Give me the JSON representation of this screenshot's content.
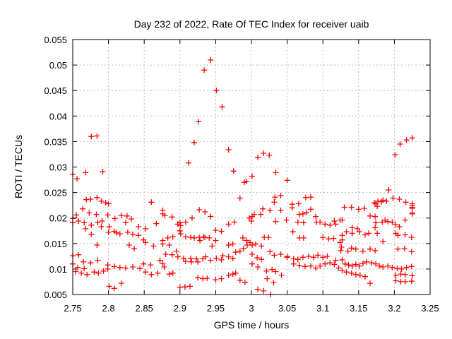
{
  "window": {
    "title": "Day 232 of 2022, Rate Of TEC Index for receiver uaib"
  },
  "colors": {
    "marker": "#ff0000",
    "grid": "#bebebe",
    "axis": "#000000",
    "background": "#ffffff",
    "text": "#000000"
  },
  "chart_data": {
    "type": "scatter",
    "title": "Day 232 of 2022, Rate Of TEC Index for receiver uaib",
    "xlabel": "GPS time / hours",
    "ylabel": "ROTI / TECUs",
    "xlim": [
      2.75,
      3.25
    ],
    "ylim": [
      0.005,
      0.055
    ],
    "xticks": [
      2.75,
      2.8,
      2.85,
      2.9,
      2.95,
      3,
      3.05,
      3.1,
      3.15,
      3.2,
      3.25
    ],
    "yticks": [
      0.005,
      0.01,
      0.015,
      0.02,
      0.025,
      0.03,
      0.035,
      0.04,
      0.045,
      0.05,
      0.055
    ],
    "grid": true,
    "legend": false,
    "marker": "plus",
    "marker_color": "#ff0000",
    "points": [
      [
        2.943,
        0.051
      ],
      [
        2.934,
        0.049
      ],
      [
        2.951,
        0.045
      ],
      [
        2.959,
        0.0418
      ],
      [
        2.926,
        0.0389
      ],
      [
        2.776,
        0.036
      ],
      [
        2.784,
        0.0361
      ],
      [
        2.92,
        0.0348
      ],
      [
        2.968,
        0.0334
      ],
      [
        2.912,
        0.0308
      ],
      [
        3.009,
        0.0319
      ],
      [
        3.017,
        0.0327
      ],
      [
        3.025,
        0.0323
      ],
      [
        2.975,
        0.0292
      ],
      [
        3.034,
        0.0289
      ],
      [
        2.993,
        0.0272
      ],
      [
        3.001,
        0.0282
      ],
      [
        2.75,
        0.0286
      ],
      [
        2.756,
        0.0277
      ],
      [
        2.768,
        0.0289
      ],
      [
        2.792,
        0.0291
      ],
      [
        3.201,
        0.0324
      ],
      [
        3.208,
        0.0345
      ],
      [
        3.217,
        0.0353
      ],
      [
        3.225,
        0.0357
      ],
      [
        3.05,
        0.0274
      ],
      [
        3.192,
        0.0255
      ],
      [
        2.769,
        0.0236
      ],
      [
        2.775,
        0.0237
      ],
      [
        2.784,
        0.024
      ],
      [
        2.79,
        0.0233
      ],
      [
        2.796,
        0.023
      ],
      [
        2.8,
        0.0228
      ],
      [
        2.86,
        0.0231
      ],
      [
        2.984,
        0.0239
      ],
      [
        2.99,
        0.027
      ],
      [
        3.033,
        0.0241
      ],
      [
        3.041,
        0.0244
      ],
      [
        3.076,
        0.024
      ],
      [
        3.083,
        0.0241
      ],
      [
        3.032,
        0.0231
      ],
      [
        3.057,
        0.0227
      ],
      [
        3.066,
        0.0228
      ],
      [
        3.174,
        0.0228
      ],
      [
        3.182,
        0.0232
      ],
      [
        3.189,
        0.0233
      ],
      [
        3.198,
        0.0239
      ],
      [
        3.207,
        0.0237
      ],
      [
        3.216,
        0.0231
      ],
      [
        3.225,
        0.0228
      ],
      [
        3.177,
        0.0233
      ],
      [
        3.184,
        0.0235
      ],
      [
        3.172,
        0.023
      ],
      [
        3.225,
        0.0225
      ],
      [
        3.225,
        0.0219
      ],
      [
        3.225,
        0.021
      ],
      [
        2.876,
        0.0215
      ],
      [
        2.764,
        0.0218
      ],
      [
        2.773,
        0.021
      ],
      [
        2.783,
        0.0207
      ],
      [
        2.755,
        0.0206
      ],
      [
        2.75,
        0.0199
      ],
      [
        2.758,
        0.0194
      ],
      [
        2.766,
        0.0191
      ],
      [
        2.75,
        0.0191
      ],
      [
        2.768,
        0.0179
      ],
      [
        2.776,
        0.0186
      ],
      [
        2.785,
        0.0191
      ],
      [
        2.791,
        0.0194
      ],
      [
        2.79,
        0.0183
      ],
      [
        2.799,
        0.0206
      ],
      [
        2.801,
        0.0183
      ],
      [
        2.776,
        0.0168
      ],
      [
        2.8,
        0.0172
      ],
      [
        2.809,
        0.0199
      ],
      [
        2.808,
        0.0174
      ],
      [
        2.811,
        0.0171
      ],
      [
        2.816,
        0.0169
      ],
      [
        2.818,
        0.0205
      ],
      [
        2.826,
        0.0204
      ],
      [
        2.824,
        0.0191
      ],
      [
        2.827,
        0.0172
      ],
      [
        2.832,
        0.0198
      ],
      [
        2.834,
        0.0168
      ],
      [
        2.842,
        0.0183
      ],
      [
        2.842,
        0.0166
      ],
      [
        2.849,
        0.0157
      ],
      [
        2.852,
        0.0179
      ],
      [
        2.852,
        0.0152
      ],
      [
        2.867,
        0.0189
      ],
      [
        2.863,
        0.0145
      ],
      [
        2.784,
        0.0147
      ],
      [
        2.758,
        0.0128
      ],
      [
        2.75,
        0.0126
      ],
      [
        2.765,
        0.0114
      ],
      [
        2.775,
        0.0112
      ],
      [
        2.785,
        0.0117
      ],
      [
        2.75,
        0.011
      ],
      [
        2.757,
        0.0103
      ],
      [
        2.766,
        0.0101
      ],
      [
        2.754,
        0.0095
      ],
      [
        2.762,
        0.0092
      ],
      [
        2.77,
        0.0089
      ],
      [
        2.78,
        0.0094
      ],
      [
        2.786,
        0.0092
      ],
      [
        2.793,
        0.0096
      ],
      [
        2.799,
        0.01
      ],
      [
        2.799,
        0.0108
      ],
      [
        2.808,
        0.0105
      ],
      [
        2.816,
        0.0103
      ],
      [
        2.824,
        0.0102
      ],
      [
        2.834,
        0.0104
      ],
      [
        2.844,
        0.0101
      ],
      [
        2.852,
        0.0094
      ],
      [
        2.86,
        0.0089
      ],
      [
        2.869,
        0.0092
      ],
      [
        2.801,
        0.0066
      ],
      [
        2.808,
        0.0062
      ],
      [
        2.818,
        0.0072
      ],
      [
        2.829,
        0.0147
      ],
      [
        2.836,
        0.014
      ],
      [
        2.849,
        0.011
      ],
      [
        2.859,
        0.0108
      ],
      [
        2.872,
        0.0117
      ],
      [
        2.927,
        0.0216
      ],
      [
        2.935,
        0.0212
      ],
      [
        2.943,
        0.0203
      ],
      [
        2.879,
        0.0205
      ],
      [
        2.889,
        0.0202
      ],
      [
        2.876,
        0.0208
      ],
      [
        2.897,
        0.0188
      ],
      [
        2.9,
        0.0191
      ],
      [
        2.901,
        0.0185
      ],
      [
        2.908,
        0.0192
      ],
      [
        2.917,
        0.02
      ],
      [
        2.968,
        0.0188
      ],
      [
        2.976,
        0.0192
      ],
      [
        2.9,
        0.0175
      ],
      [
        2.901,
        0.0169
      ],
      [
        2.908,
        0.0163
      ],
      [
        2.915,
        0.0162
      ],
      [
        2.92,
        0.0161
      ],
      [
        2.927,
        0.0162
      ],
      [
        2.928,
        0.0156
      ],
      [
        2.933,
        0.0163
      ],
      [
        2.935,
        0.0162
      ],
      [
        2.941,
        0.0161
      ],
      [
        2.95,
        0.0176
      ],
      [
        2.958,
        0.0174
      ],
      [
        2.95,
        0.0156
      ],
      [
        2.945,
        0.0145
      ],
      [
        2.89,
        0.0163
      ],
      [
        2.883,
        0.0161
      ],
      [
        2.876,
        0.0156
      ],
      [
        2.876,
        0.0149
      ],
      [
        2.885,
        0.0147
      ],
      [
        2.88,
        0.0129
      ],
      [
        2.889,
        0.0128
      ],
      [
        2.897,
        0.0124
      ],
      [
        2.905,
        0.0121
      ],
      [
        2.908,
        0.0115
      ],
      [
        2.915,
        0.0121
      ],
      [
        2.916,
        0.0114
      ],
      [
        2.923,
        0.012
      ],
      [
        2.925,
        0.0114
      ],
      [
        2.932,
        0.012
      ],
      [
        2.895,
        0.0135
      ],
      [
        2.936,
        0.0124
      ],
      [
        2.943,
        0.0117
      ],
      [
        2.951,
        0.0121
      ],
      [
        2.958,
        0.0118
      ],
      [
        2.96,
        0.0126
      ],
      [
        2.968,
        0.0124
      ],
      [
        2.974,
        0.0121
      ],
      [
        2.978,
        0.0133
      ],
      [
        2.984,
        0.0135
      ],
      [
        2.989,
        0.014
      ],
      [
        2.994,
        0.0147
      ],
      [
        2.998,
        0.0152
      ],
      [
        2.988,
        0.0161
      ],
      [
        2.993,
        0.0156
      ],
      [
        2.974,
        0.0149
      ],
      [
        2.968,
        0.0147
      ],
      [
        2.925,
        0.0083
      ],
      [
        2.932,
        0.0081
      ],
      [
        2.938,
        0.0082
      ],
      [
        2.95,
        0.0079
      ],
      [
        2.958,
        0.0081
      ],
      [
        2.968,
        0.0088
      ],
      [
        2.974,
        0.009
      ],
      [
        2.978,
        0.0092
      ],
      [
        2.984,
        0.0078
      ],
      [
        2.991,
        0.0074
      ],
      [
        2.9,
        0.0064
      ],
      [
        2.907,
        0.0065
      ],
      [
        2.914,
        0.0066
      ],
      [
        2.876,
        0.0111
      ],
      [
        2.878,
        0.0104
      ],
      [
        2.885,
        0.009
      ],
      [
        2.89,
        0.0092
      ],
      [
        2.997,
        0.02
      ],
      [
        3.0,
        0.0194
      ],
      [
        3.016,
        0.0218
      ],
      [
        3.026,
        0.0215
      ],
      [
        3.004,
        0.0207
      ],
      [
        3.013,
        0.0207
      ],
      [
        3.001,
        0.0203
      ],
      [
        3.034,
        0.0193
      ],
      [
        3.041,
        0.0215
      ],
      [
        3.057,
        0.022
      ],
      [
        3.067,
        0.0207
      ],
      [
        3.072,
        0.0208
      ],
      [
        3.077,
        0.0211
      ],
      [
        3.083,
        0.0217
      ],
      [
        3.049,
        0.0196
      ],
      [
        3.065,
        0.0192
      ],
      [
        3.073,
        0.0191
      ],
      [
        3.09,
        0.0203
      ],
      [
        3.091,
        0.0192
      ],
      [
        3.096,
        0.0192
      ],
      [
        3.103,
        0.0188
      ],
      [
        3.11,
        0.0186
      ],
      [
        3.116,
        0.0194
      ],
      [
        3.118,
        0.0188
      ],
      [
        3.124,
        0.0196
      ],
      [
        3.058,
        0.0173
      ],
      [
        3.067,
        0.0161
      ],
      [
        3.073,
        0.0161
      ],
      [
        3.1,
        0.0162
      ],
      [
        3.108,
        0.0159
      ],
      [
        3.115,
        0.016
      ],
      [
        3.018,
        0.0162
      ],
      [
        3.024,
        0.0162
      ],
      [
        3.006,
        0.0149
      ],
      [
        3.001,
        0.0147
      ],
      [
        3.014,
        0.0145
      ],
      [
        3.026,
        0.0134
      ],
      [
        3.032,
        0.0127
      ],
      [
        3.041,
        0.0129
      ],
      [
        3.05,
        0.0125
      ],
      [
        3.05,
        0.0123
      ],
      [
        3.059,
        0.012
      ],
      [
        3.065,
        0.0119
      ],
      [
        3.072,
        0.0123
      ],
      [
        3.08,
        0.0125
      ],
      [
        3.087,
        0.0123
      ],
      [
        3.093,
        0.0127
      ],
      [
        3.1,
        0.0123
      ],
      [
        3.106,
        0.0125
      ],
      [
        3.059,
        0.011
      ],
      [
        3.067,
        0.0107
      ],
      [
        3.075,
        0.0105
      ],
      [
        3.083,
        0.0106
      ],
      [
        3.09,
        0.0102
      ],
      [
        3.096,
        0.0106
      ],
      [
        3.103,
        0.011
      ],
      [
        3.11,
        0.0112
      ],
      [
        3.116,
        0.0109
      ],
      [
        3.001,
        0.0129
      ],
      [
        3.008,
        0.0122
      ],
      [
        3.014,
        0.0119
      ],
      [
        3.001,
        0.011
      ],
      [
        3.009,
        0.0104
      ],
      [
        3.021,
        0.0096
      ],
      [
        3.029,
        0.0099
      ],
      [
        3.034,
        0.0095
      ],
      [
        3.042,
        0.0088
      ],
      [
        3.022,
        0.0081
      ],
      [
        3.031,
        0.0073
      ],
      [
        3.009,
        0.006
      ],
      [
        3.017,
        0.0057
      ],
      [
        3.027,
        0.005
      ],
      [
        3.124,
        0.0152
      ],
      [
        3.126,
        0.0143
      ],
      [
        3.125,
        0.0136
      ],
      [
        3.118,
        0.0117
      ],
      [
        3.122,
        0.0102
      ],
      [
        3.13,
        0.0221
      ],
      [
        3.14,
        0.0221
      ],
      [
        3.15,
        0.0217
      ],
      [
        3.158,
        0.0219
      ],
      [
        3.176,
        0.0223
      ],
      [
        3.166,
        0.0204
      ],
      [
        3.173,
        0.0203
      ],
      [
        3.225,
        0.0221
      ],
      [
        3.225,
        0.0208
      ],
      [
        3.174,
        0.0191
      ],
      [
        3.183,
        0.0192
      ],
      [
        3.187,
        0.0196
      ],
      [
        3.191,
        0.0193
      ],
      [
        3.197,
        0.0192
      ],
      [
        3.202,
        0.0187
      ],
      [
        3.207,
        0.0183
      ],
      [
        3.215,
        0.0196
      ],
      [
        3.127,
        0.0196
      ],
      [
        3.141,
        0.0181
      ],
      [
        3.148,
        0.0179
      ],
      [
        3.133,
        0.0173
      ],
      [
        3.141,
        0.017
      ],
      [
        3.151,
        0.0173
      ],
      [
        3.159,
        0.0167
      ],
      [
        3.164,
        0.017
      ],
      [
        3.173,
        0.0181
      ],
      [
        3.176,
        0.017
      ],
      [
        3.127,
        0.0166
      ],
      [
        3.127,
        0.0157
      ],
      [
        3.184,
        0.0154
      ],
      [
        3.202,
        0.017
      ],
      [
        3.205,
        0.0166
      ],
      [
        3.215,
        0.0167
      ],
      [
        3.224,
        0.0162
      ],
      [
        3.14,
        0.0141
      ],
      [
        3.146,
        0.0139
      ],
      [
        3.156,
        0.0135
      ],
      [
        3.135,
        0.0135
      ],
      [
        3.166,
        0.0139
      ],
      [
        3.173,
        0.0136
      ],
      [
        3.205,
        0.0139
      ],
      [
        3.214,
        0.014
      ],
      [
        3.224,
        0.0134
      ],
      [
        3.127,
        0.0118
      ],
      [
        3.131,
        0.011
      ],
      [
        3.136,
        0.0108
      ],
      [
        3.141,
        0.0106
      ],
      [
        3.146,
        0.0109
      ],
      [
        3.151,
        0.0106
      ],
      [
        3.156,
        0.0111
      ],
      [
        3.161,
        0.0114
      ],
      [
        3.168,
        0.0112
      ],
      [
        3.174,
        0.011
      ],
      [
        3.179,
        0.0106
      ],
      [
        3.184,
        0.0104
      ],
      [
        3.191,
        0.0106
      ],
      [
        3.197,
        0.0103
      ],
      [
        3.204,
        0.0101
      ],
      [
        3.21,
        0.01
      ],
      [
        3.217,
        0.0103
      ],
      [
        3.224,
        0.0105
      ],
      [
        3.127,
        0.0097
      ],
      [
        3.133,
        0.0094
      ],
      [
        3.14,
        0.0092
      ],
      [
        3.146,
        0.0089
      ],
      [
        3.152,
        0.0088
      ],
      [
        3.159,
        0.0085
      ],
      [
        3.166,
        0.0072
      ],
      [
        3.202,
        0.0077
      ],
      [
        3.209,
        0.0075
      ],
      [
        3.215,
        0.0075
      ],
      [
        3.224,
        0.0076
      ],
      [
        3.225,
        0.0087
      ],
      [
        3.202,
        0.0088
      ],
      [
        3.209,
        0.009
      ],
      [
        3.215,
        0.0089
      ]
    ]
  }
}
